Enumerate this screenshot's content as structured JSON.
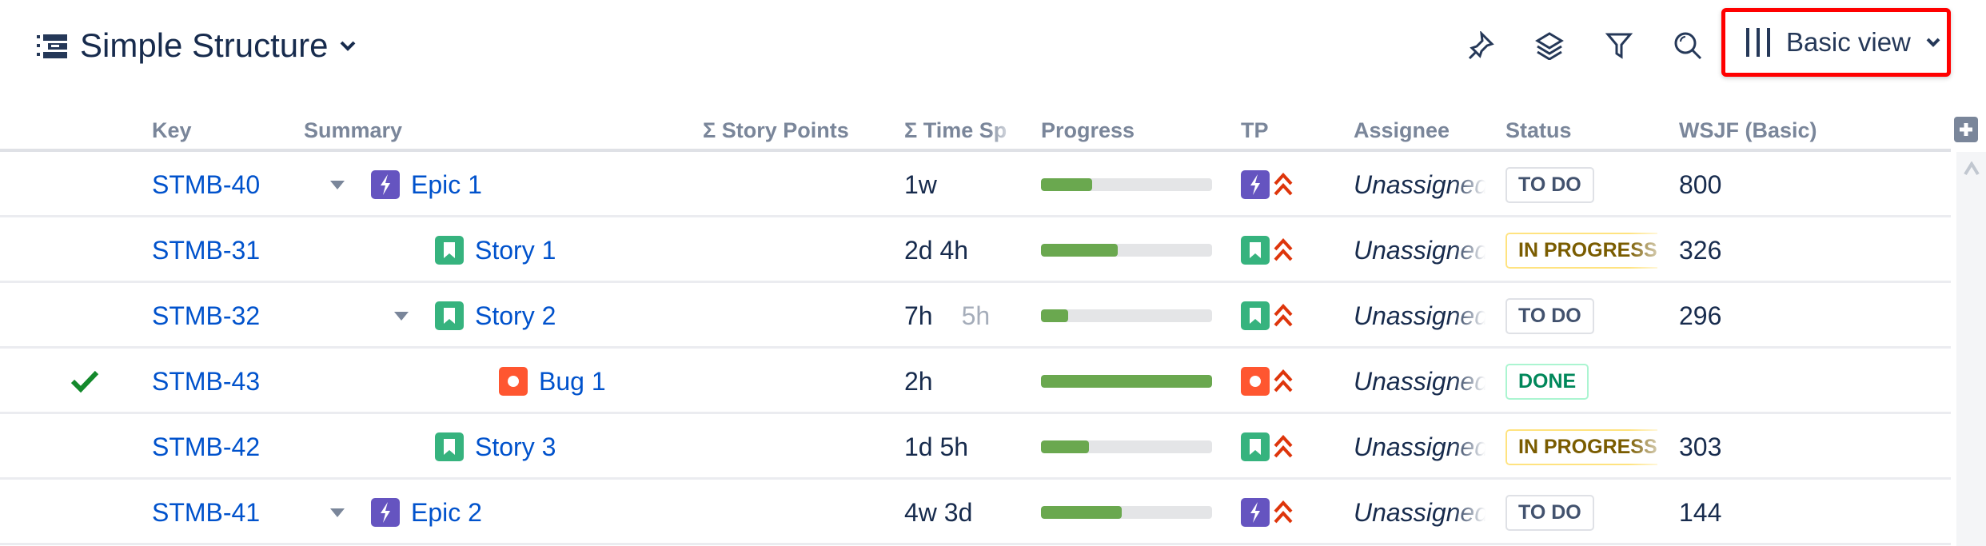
{
  "header": {
    "title": "Simple Structure",
    "view_label": "Basic view",
    "toolbar_icons": [
      "pin-icon",
      "layers-icon",
      "filter-icon",
      "search-icon"
    ]
  },
  "columns": [
    "Key",
    "Summary",
    "Σ Story Points",
    "Σ Time Sp",
    "Progress",
    "TP",
    "Assignee",
    "Status",
    "WSJF (Basic)"
  ],
  "colors": {
    "epic": "#6554c0",
    "story": "#36b37e",
    "bug": "#ff5630",
    "priority": "#de350b",
    "progress": "#6aa84f",
    "link": "#0052cc"
  },
  "rows": [
    {
      "key": "STMB-40",
      "summary": "Epic 1",
      "type": "epic",
      "level": 0,
      "expanded": true,
      "time": "1w",
      "time2": "",
      "progress": 30,
      "assignee": "Unassigned",
      "status": "TO DO",
      "wsjf": "800",
      "check": false
    },
    {
      "key": "STMB-31",
      "summary": "Story 1",
      "type": "story",
      "level": 1,
      "expanded": false,
      "time": "2d 4h",
      "time2": "",
      "progress": 45,
      "assignee": "Unassigned",
      "status": "IN PROGRESS",
      "wsjf": "326",
      "check": false
    },
    {
      "key": "STMB-32",
      "summary": "Story 2",
      "type": "story",
      "level": 1,
      "expanded": true,
      "time": "7h",
      "time2": "5h",
      "progress": 16,
      "assignee": "Unassigned",
      "status": "TO DO",
      "wsjf": "296",
      "check": false
    },
    {
      "key": "STMB-43",
      "summary": "Bug 1",
      "type": "bug",
      "level": 2,
      "expanded": false,
      "time": "2h",
      "time2": "",
      "progress": 100,
      "assignee": "Unassigned",
      "status": "DONE",
      "wsjf": "",
      "check": true
    },
    {
      "key": "STMB-42",
      "summary": "Story 3",
      "type": "story",
      "level": 1,
      "expanded": false,
      "time": "1d 5h",
      "time2": "",
      "progress": 28,
      "assignee": "Unassigned",
      "status": "IN PROGRESS",
      "wsjf": "303",
      "check": false
    },
    {
      "key": "STMB-41",
      "summary": "Epic 2",
      "type": "epic",
      "level": 0,
      "expanded": true,
      "time": "4w 3d",
      "time2": "",
      "progress": 47,
      "assignee": "Unassigned",
      "status": "TO DO",
      "wsjf": "144",
      "check": false
    }
  ]
}
